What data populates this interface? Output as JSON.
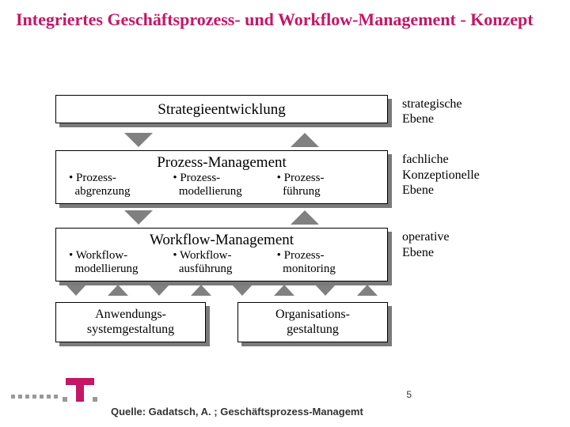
{
  "title": "Integriertes Geschäftsprozess- und Workflow-Management - Konzept",
  "level1": {
    "box": "Strategieentwicklung",
    "label_l1": "strategische",
    "label_l2": "Ebene"
  },
  "level2": {
    "title": "Prozess-Management",
    "cols": [
      {
        "l1": "• Prozess-",
        "l2": "  abgrenzung"
      },
      {
        "l1": "• Prozess-",
        "l2": "  modellierung"
      },
      {
        "l1": "• Prozess-",
        "l2": "  führung"
      }
    ],
    "label_l1": "fachliche",
    "label_l2": "Konzeptionelle",
    "label_l3": "Ebene"
  },
  "level3": {
    "title": "Workflow-Management",
    "cols": [
      {
        "l1": "• Workflow-",
        "l2": "  modellierung"
      },
      {
        "l1": "• Workflow-",
        "l2": "  ausführung"
      },
      {
        "l1": "• Prozess-",
        "l2": "  monitoring"
      }
    ],
    "label_l1": "operative",
    "label_l2": "Ebene"
  },
  "bottom": {
    "left_l1": "Anwendungs-",
    "left_l2": "systemgestaltung",
    "right_l1": "Organisations-",
    "right_l2": "gestaltung"
  },
  "footer": {
    "source": "Quelle: Gadatsch, A. ; Geschäftsprozess-Managemt",
    "page": "5"
  },
  "colors": {
    "brand": "#c41766",
    "shadow": "#7a7a7a",
    "arrow": "#808080"
  }
}
